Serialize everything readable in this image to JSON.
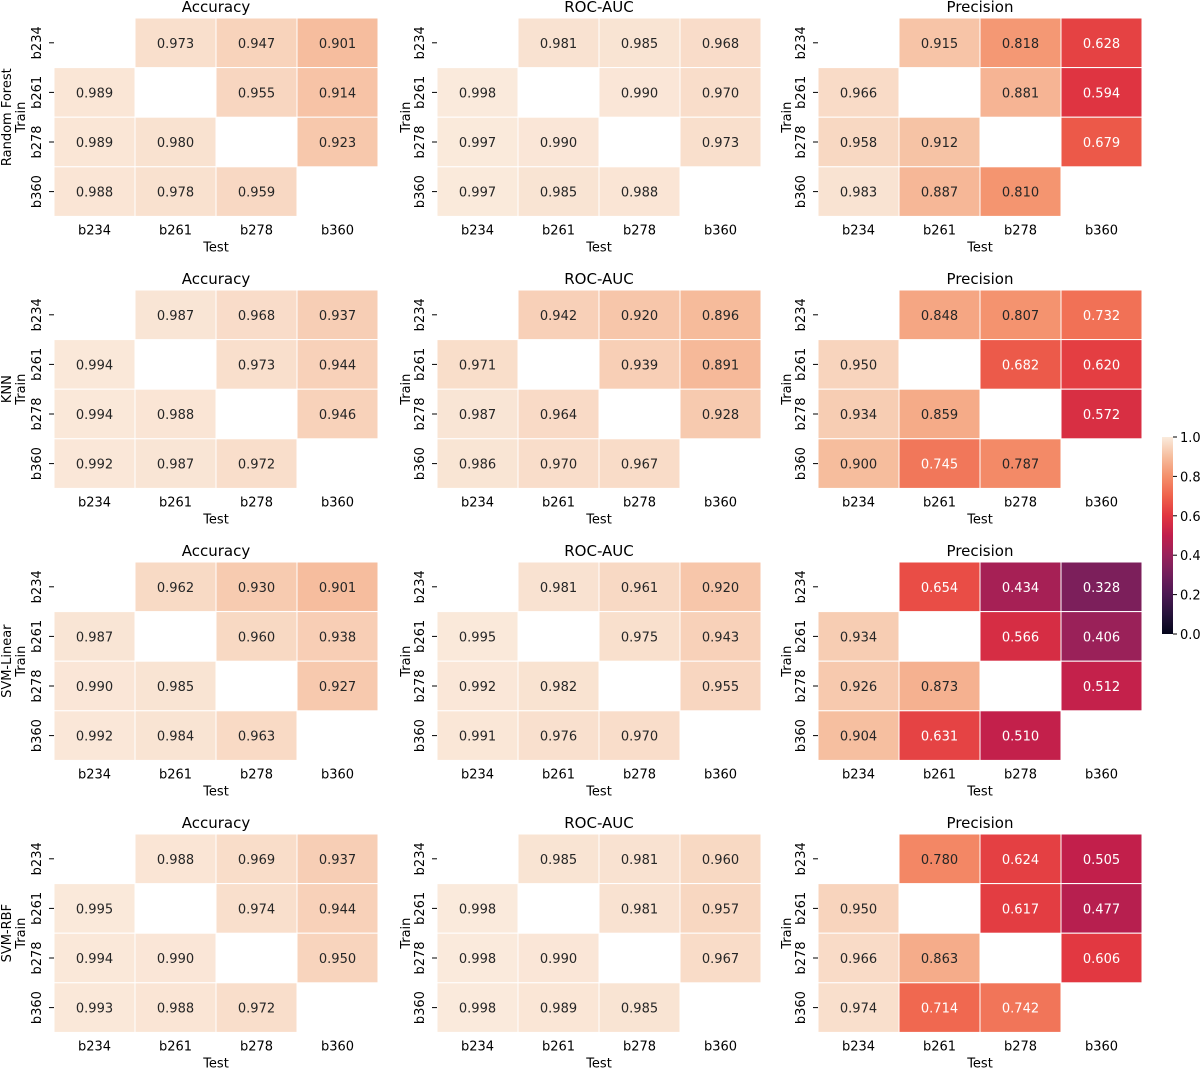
{
  "chart_data": {
    "type": "heatmap",
    "colormap": "rocket",
    "vmin": 0.0,
    "vmax": 1.0,
    "colorbar_ticks": [
      "0.0",
      "0.2",
      "0.4",
      "0.6",
      "0.8",
      "1.0"
    ],
    "xlabel": "Test",
    "ylabel": "Train",
    "categories": [
      "b234",
      "b261",
      "b278",
      "b360"
    ],
    "rows": [
      {
        "label_line1": "Random Forest",
        "label_line2": "Train",
        "panels": [
          {
            "title": "Accuracy",
            "values": [
              [
                null,
                0.973,
                0.947,
                0.901
              ],
              [
                0.989,
                null,
                0.955,
                0.914
              ],
              [
                0.989,
                0.98,
                null,
                0.923
              ],
              [
                0.988,
                0.978,
                0.959,
                null
              ]
            ]
          },
          {
            "title": "ROC-AUC",
            "values": [
              [
                null,
                0.981,
                0.985,
                0.968
              ],
              [
                0.998,
                null,
                0.99,
                0.97
              ],
              [
                0.997,
                0.99,
                null,
                0.973
              ],
              [
                0.997,
                0.985,
                0.988,
                null
              ]
            ]
          },
          {
            "title": "Precision",
            "values": [
              [
                null,
                0.915,
                0.818,
                0.628
              ],
              [
                0.966,
                null,
                0.881,
                0.594
              ],
              [
                0.958,
                0.912,
                null,
                0.679
              ],
              [
                0.983,
                0.887,
                0.81,
                null
              ]
            ]
          }
        ]
      },
      {
        "label_line1": "KNN",
        "label_line2": "Train",
        "panels": [
          {
            "title": "Accuracy",
            "values": [
              [
                null,
                0.987,
                0.968,
                0.937
              ],
              [
                0.994,
                null,
                0.973,
                0.944
              ],
              [
                0.994,
                0.988,
                null,
                0.946
              ],
              [
                0.992,
                0.987,
                0.972,
                null
              ]
            ]
          },
          {
            "title": "ROC-AUC",
            "values": [
              [
                null,
                0.942,
                0.92,
                0.896
              ],
              [
                0.971,
                null,
                0.939,
                0.891
              ],
              [
                0.987,
                0.964,
                null,
                0.928
              ],
              [
                0.986,
                0.97,
                0.967,
                null
              ]
            ]
          },
          {
            "title": "Precision",
            "values": [
              [
                null,
                0.848,
                0.807,
                0.732
              ],
              [
                0.95,
                null,
                0.682,
                0.62
              ],
              [
                0.934,
                0.859,
                null,
                0.572
              ],
              [
                0.9,
                0.745,
                0.787,
                null
              ]
            ]
          }
        ]
      },
      {
        "label_line1": "SVM-Linear",
        "label_line2": "Train",
        "panels": [
          {
            "title": "Accuracy",
            "values": [
              [
                null,
                0.962,
                0.93,
                0.901
              ],
              [
                0.987,
                null,
                0.96,
                0.938
              ],
              [
                0.99,
                0.985,
                null,
                0.927
              ],
              [
                0.992,
                0.984,
                0.963,
                null
              ]
            ]
          },
          {
            "title": "ROC-AUC",
            "values": [
              [
                null,
                0.981,
                0.961,
                0.92
              ],
              [
                0.995,
                null,
                0.975,
                0.943
              ],
              [
                0.992,
                0.982,
                null,
                0.955
              ],
              [
                0.991,
                0.976,
                0.97,
                null
              ]
            ]
          },
          {
            "title": "Precision",
            "values": [
              [
                null,
                0.654,
                0.434,
                0.328
              ],
              [
                0.934,
                null,
                0.566,
                0.406
              ],
              [
                0.926,
                0.873,
                null,
                0.512
              ],
              [
                0.904,
                0.631,
                0.51,
                null
              ]
            ]
          }
        ]
      },
      {
        "label_line1": "SVM-RBF",
        "label_line2": "Train",
        "panels": [
          {
            "title": "Accuracy",
            "values": [
              [
                null,
                0.988,
                0.969,
                0.937
              ],
              [
                0.995,
                null,
                0.974,
                0.944
              ],
              [
                0.994,
                0.99,
                null,
                0.95
              ],
              [
                0.993,
                0.988,
                0.972,
                null
              ]
            ]
          },
          {
            "title": "ROC-AUC",
            "values": [
              [
                null,
                0.985,
                0.981,
                0.96
              ],
              [
                0.998,
                null,
                0.981,
                0.957
              ],
              [
                0.998,
                0.99,
                null,
                0.967
              ],
              [
                0.998,
                0.989,
                0.985,
                null
              ]
            ]
          },
          {
            "title": "Precision",
            "values": [
              [
                null,
                0.78,
                0.624,
                0.505
              ],
              [
                0.95,
                null,
                0.617,
                0.477
              ],
              [
                0.966,
                0.863,
                null,
                0.606
              ],
              [
                0.974,
                0.714,
                0.742,
                null
              ]
            ]
          }
        ]
      }
    ]
  }
}
